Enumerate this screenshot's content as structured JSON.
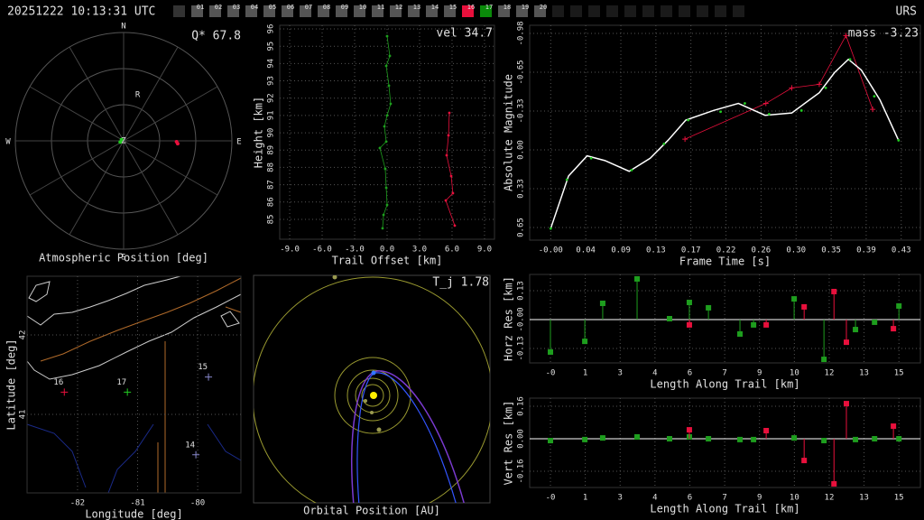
{
  "header": {
    "timestamp": "20251222 10:13:31 UTC",
    "site": "URS",
    "stations": [
      {
        "label": "01",
        "color": "#555555"
      },
      {
        "label": "02",
        "color": "#555555"
      },
      {
        "label": "03",
        "color": "#555555"
      },
      {
        "label": "04",
        "color": "#555555"
      },
      {
        "label": "05",
        "color": "#555555"
      },
      {
        "label": "06",
        "color": "#555555"
      },
      {
        "label": "07",
        "color": "#555555"
      },
      {
        "label": "08",
        "color": "#555555"
      },
      {
        "label": "09",
        "color": "#555555"
      },
      {
        "label": "10",
        "color": "#555555"
      },
      {
        "label": "11",
        "color": "#555555"
      },
      {
        "label": "12",
        "color": "#555555"
      },
      {
        "label": "13",
        "color": "#555555"
      },
      {
        "label": "14",
        "color": "#555555"
      },
      {
        "label": "15",
        "color": "#555555"
      },
      {
        "label": "16",
        "color": "#e8103c"
      },
      {
        "label": "17",
        "color": "#0a8a0a"
      },
      {
        "label": "18",
        "color": "#555555"
      },
      {
        "label": "19",
        "color": "#555555"
      },
      {
        "label": "20",
        "color": "#555555"
      }
    ]
  },
  "chart_data": [
    {
      "type": "polar",
      "title": "Atmospheric Position [deg]",
      "annotation": "Q* 67.8",
      "directions": [
        "N",
        "E",
        "S",
        "W"
      ],
      "rlim": [
        0,
        90
      ],
      "series": [
        {
          "color": "#22cc22",
          "azimuth": [
            300,
            250
          ],
          "zenith": [
            2,
            3
          ]
        },
        {
          "color": "#e8103c",
          "azimuth": [
            91,
            93
          ],
          "zenith": [
            44,
            45
          ]
        }
      ],
      "labels": [
        {
          "text": "R",
          "azimuth": 17,
          "zenith": 40
        },
        {
          "text": "Z",
          "azimuth": 0,
          "zenith": 0
        }
      ]
    },
    {
      "type": "scatter",
      "annotation": "vel 34.7",
      "xlabel": "Trail Offset [km]",
      "ylabel": "Height [km]",
      "grid": true,
      "xlim": [
        -9.92,
        9.92
      ],
      "ylim": [
        83.85,
        96.21
      ],
      "xticks": [
        {
          "value": -9,
          "label": "-9.0"
        },
        {
          "value": -6,
          "label": "-6.0"
        },
        {
          "value": -3,
          "label": "-3.0"
        },
        {
          "value": 0,
          "label": "0.0"
        },
        {
          "value": 3,
          "label": "3.0"
        },
        {
          "value": 6,
          "label": "6.0"
        },
        {
          "value": 9,
          "label": "9.0"
        }
      ],
      "yticks": [
        85,
        86,
        87,
        88,
        89,
        90,
        91,
        92,
        93,
        94,
        95,
        96
      ],
      "series": [
        {
          "color": "#1e9e1e",
          "mode": "line+markers",
          "marker": "dot",
          "x": [
            0,
            0.25,
            -0.08,
            0.17,
            0.33,
            0,
            -0.25,
            -0.08,
            -0.67,
            -0.17,
            -0.08,
            0,
            -0.33,
            -0.42
          ],
          "values": [
            95.58,
            94.44,
            93.86,
            92.72,
            91.67,
            91.0,
            90.37,
            89.49,
            89.12,
            87.92,
            86.82,
            85.83,
            85.26,
            84.48
          ]
        },
        {
          "color": "#e8103c",
          "mode": "line+markers",
          "marker": "dot",
          "x": [
            5.75,
            5.67,
            5.5,
            5.92,
            6.08,
            5.42,
            6.25
          ],
          "values": [
            91.15,
            89.85,
            88.7,
            87.5,
            86.51,
            86.09,
            84.64
          ]
        }
      ]
    },
    {
      "type": "scatter",
      "annotation": "mass -3.23",
      "xlabel": "Frame Time [s]",
      "ylabel": "Absolute Magnitude",
      "grid": true,
      "xlim": [
        -0.026,
        0.457
      ],
      "ylim": [
        0.758,
        -1.046
      ],
      "xticks": [
        {
          "value": 0,
          "label": "-0.00"
        },
        {
          "value": 0.0433,
          "label": "0.04"
        },
        {
          "value": 0.0867,
          "label": "0.09"
        },
        {
          "value": 0.13,
          "label": "0.13"
        },
        {
          "value": 0.1733,
          "label": "0.17"
        },
        {
          "value": 0.2167,
          "label": "0.22"
        },
        {
          "value": 0.26,
          "label": "0.26"
        },
        {
          "value": 0.3033,
          "label": "0.30"
        },
        {
          "value": 0.3467,
          "label": "0.35"
        },
        {
          "value": 0.39,
          "label": "0.39"
        },
        {
          "value": 0.4333,
          "label": "0.43"
        }
      ],
      "yticks": [
        {
          "value": -0.978,
          "label": "-0.98"
        },
        {
          "value": -0.652,
          "label": "-0.65"
        },
        {
          "value": -0.326,
          "label": "-0.33"
        },
        {
          "value": 0,
          "label": "0.00"
        },
        {
          "value": 0.326,
          "label": "0.33"
        },
        {
          "value": 0.652,
          "label": "0.65"
        }
      ],
      "series": [
        {
          "color": "#e8103c",
          "mode": "line+markers",
          "marker": "plus",
          "x": [
            0.166,
            0.266,
            0.298,
            0.332,
            0.365,
            0.398
          ],
          "values": [
            -0.09,
            -0.39,
            -0.52,
            -0.55,
            -0.96,
            -0.34
          ]
        },
        {
          "color": "#ffffff",
          "mode": "line",
          "x": [
            0,
            0.022,
            0.045,
            0.067,
            0.097,
            0.123,
            0.145,
            0.167,
            0.201,
            0.232,
            0.265,
            0.298,
            0.332,
            0.351,
            0.368,
            0.384,
            0.407,
            0.43
          ],
          "values": [
            0.66,
            0.22,
            0.05,
            0.09,
            0.18,
            0.07,
            -0.08,
            -0.25,
            -0.33,
            -0.39,
            -0.29,
            -0.31,
            -0.48,
            -0.65,
            -0.76,
            -0.67,
            -0.42,
            -0.08
          ]
        },
        {
          "color": "#22cc22",
          "mode": "markers",
          "marker": "dot",
          "x": [
            0,
            0.02,
            0.05,
            0.1,
            0.14,
            0.17,
            0.21,
            0.24,
            0.27,
            0.31,
            0.34,
            0.37,
            0.4,
            0.43
          ],
          "values": [
            0.66,
            0.25,
            0.07,
            0.17,
            -0.05,
            -0.25,
            -0.32,
            -0.39,
            -0.3,
            -0.33,
            -0.52,
            -0.76,
            -0.45,
            -0.08
          ]
        }
      ]
    },
    {
      "type": "map",
      "xlabel": "Longitude [deg]",
      "ylabel": "Latitude [deg]",
      "grid": true,
      "xlim": [
        -82.84,
        -79.28
      ],
      "ylim": [
        40.01,
        42.74
      ],
      "xticks": [
        -82,
        -81,
        -80
      ],
      "yticks": [
        41,
        42
      ],
      "points": [
        {
          "label": "16",
          "color": "#e8103c",
          "lon": -82.22,
          "lat": 41.28
        },
        {
          "label": "17",
          "color": "#22cc22",
          "lon": -81.17,
          "lat": 41.28
        },
        {
          "label": "15",
          "color": "#8888cc",
          "lon": -79.82,
          "lat": 41.47
        },
        {
          "label": "14",
          "color": "#8888cc",
          "lon": -80.03,
          "lat": 40.49
        }
      ]
    },
    {
      "type": "orbit",
      "title": "Orbital Position [AU]",
      "annotation": "T_j 1.78"
    },
    {
      "type": "scatter",
      "xlabel": "Length Along Trail [km]",
      "ylabel": "Horz Res [km]",
      "grid": true,
      "zero_line": true,
      "xlim": [
        -0.87,
        15.5
      ],
      "ylim": [
        -0.195,
        0.203
      ],
      "xticks": [
        {
          "value": 0,
          "label": "-0"
        },
        {
          "value": 1.46,
          "label": "1"
        },
        {
          "value": 2.92,
          "label": "3"
        },
        {
          "value": 4.38,
          "label": "4"
        },
        {
          "value": 5.84,
          "label": "6"
        },
        {
          "value": 7.3,
          "label": "7"
        },
        {
          "value": 8.76,
          "label": "9"
        },
        {
          "value": 10.22,
          "label": "10"
        },
        {
          "value": 11.68,
          "label": "12"
        },
        {
          "value": 13.14,
          "label": "13"
        },
        {
          "value": 14.6,
          "label": "15"
        }
      ],
      "yticks": [
        0.13,
        {
          "value": 0,
          "label": "-0.00"
        },
        -0.13
      ],
      "series": [
        {
          "color": "#1e9e1e",
          "mode": "stem",
          "marker": "square",
          "x": [
            0,
            1.44,
            2.19,
            3.63,
            4.99,
            5.82,
            6.62,
            7.94,
            8.51,
            10.21,
            11.46,
            12.78,
            13.58,
            14.6
          ],
          "values": [
            -0.146,
            -0.098,
            0.073,
            0.183,
            0.004,
            0.077,
            0.053,
            -0.065,
            -0.024,
            0.093,
            -0.179,
            -0.045,
            -0.012,
            0.061
          ]
        },
        {
          "color": "#e8103c",
          "mode": "stem",
          "marker": "square",
          "x": [
            5.82,
            9.04,
            10.63,
            11.88,
            12.4,
            14.37
          ],
          "values": [
            -0.024,
            -0.024,
            0.057,
            0.126,
            -0.102,
            -0.041
          ]
        }
      ]
    },
    {
      "type": "scatter",
      "xlabel": "Length Along Trail [km]",
      "ylabel": "Vert Res [km]",
      "grid": true,
      "zero_line": true,
      "xlim": [
        -0.87,
        15.5
      ],
      "ylim": [
        -0.24,
        0.2
      ],
      "xticks": [
        {
          "value": 0,
          "label": "-0"
        },
        {
          "value": 1.46,
          "label": "1"
        },
        {
          "value": 2.92,
          "label": "3"
        },
        {
          "value": 4.38,
          "label": "4"
        },
        {
          "value": 5.84,
          "label": "6"
        },
        {
          "value": 7.3,
          "label": "7"
        },
        {
          "value": 8.76,
          "label": "9"
        },
        {
          "value": 10.22,
          "label": "10"
        },
        {
          "value": 11.68,
          "label": "12"
        },
        {
          "value": 13.14,
          "label": "13"
        },
        {
          "value": 14.6,
          "label": "15"
        }
      ],
      "yticks": [
        0.16,
        {
          "value": 0,
          "label": "0.00"
        },
        -0.16
      ],
      "series": [
        {
          "color": "#1e9e1e",
          "mode": "stem",
          "marker": "square",
          "x": [
            0,
            1.44,
            2.19,
            3.63,
            4.99,
            5.82,
            6.62,
            7.94,
            8.51,
            10.21,
            11.46,
            12.78,
            13.58,
            14.6
          ],
          "values": [
            -0.009,
            -0.004,
            0.004,
            0.009,
            0,
            0.009,
            0,
            -0.004,
            -0.004,
            0.004,
            -0.009,
            -0.004,
            0,
            0
          ]
        },
        {
          "color": "#e8103c",
          "mode": "stem",
          "marker": "square",
          "x": [
            5.82,
            9.04,
            10.63,
            11.88,
            12.4,
            14.37
          ],
          "values": [
            0.044,
            0.04,
            -0.107,
            -0.222,
            0.173,
            0.062
          ]
        }
      ]
    }
  ]
}
